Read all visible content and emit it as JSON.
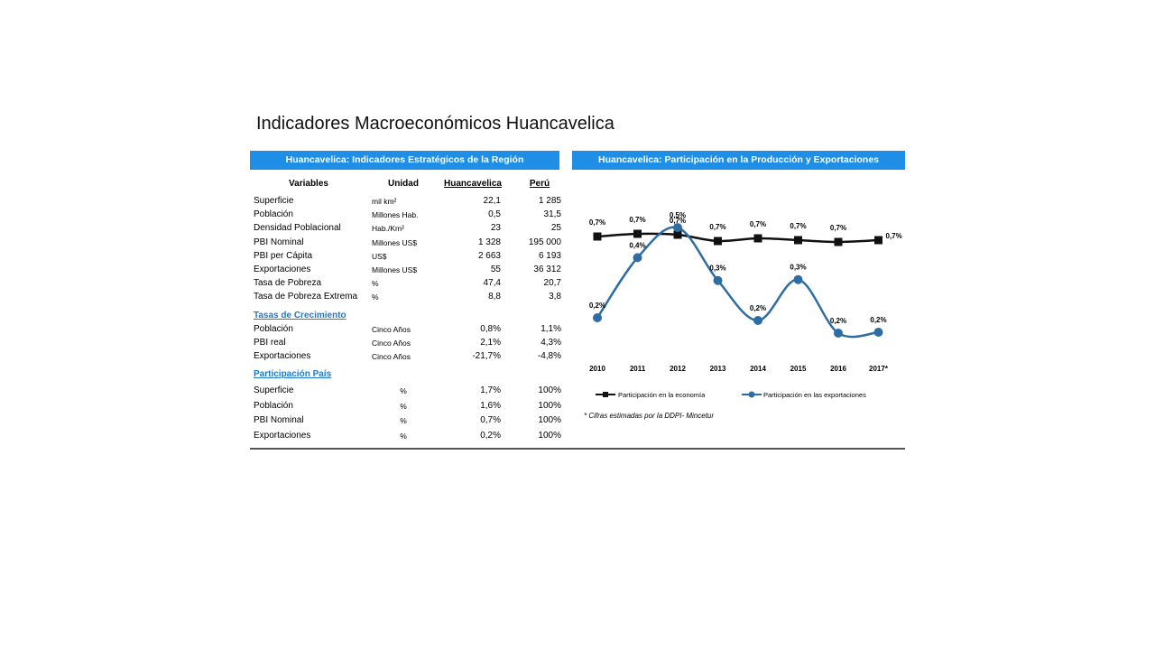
{
  "slide_title": "Indicadores Macroeconómicos Huancavelica",
  "left_panel": {
    "header": "Huancavelica: Indicadores Estratégicos de la Región",
    "columns": [
      "Variables",
      "Unidad",
      "Huancavelica",
      "Perú"
    ],
    "rows": [
      {
        "var": "Superficie",
        "unit": "mil km²",
        "reg": "22,1",
        "peru": "1 285"
      },
      {
        "var": "Población",
        "unit": "Millones Hab.",
        "reg": "0,5",
        "peru": "31,5"
      },
      {
        "var": "Densidad Poblacional",
        "unit": "Hab./Km²",
        "reg": "23",
        "peru": "25"
      },
      {
        "var": "PBI Nominal",
        "unit": "Millones US$",
        "reg": "1 328",
        "peru": "195 000"
      },
      {
        "var": "PBI per Cápita",
        "unit": "US$",
        "reg": "2 663",
        "peru": "6 193"
      },
      {
        "var": "Exportaciones",
        "unit": "Millones US$",
        "reg": "55",
        "peru": "36 312"
      },
      {
        "var": "Tasa de Pobreza",
        "unit": "%",
        "reg": "47,4",
        "peru": "20,7"
      },
      {
        "var": "Tasa de Pobreza Extrema",
        "unit": "%",
        "reg": "8,8",
        "peru": "3,8"
      }
    ],
    "growth": {
      "title": "Tasas de Crecimiento",
      "rows": [
        {
          "var": "Población",
          "unit": "Cinco Años",
          "reg": "0,8%",
          "peru": "1,1%"
        },
        {
          "var": "PBI real",
          "unit": "Cinco Años",
          "reg": "2,1%",
          "peru": "4,3%"
        },
        {
          "var": "Exportaciones",
          "unit": "Cinco Años",
          "reg": "-21,7%",
          "peru": "-4,8%"
        }
      ]
    },
    "share": {
      "title": "Participación País",
      "rows": [
        {
          "var": "Superficie",
          "unit": "%",
          "reg": "1,7%",
          "peru": "100%"
        },
        {
          "var": "Población",
          "unit": "%",
          "reg": "1,6%",
          "peru": "100%"
        },
        {
          "var": "PBI Nominal",
          "unit": "%",
          "reg": "0,7%",
          "peru": "100%"
        },
        {
          "var": "Exportaciones",
          "unit": "%",
          "reg": "0,2%",
          "peru": "100%"
        }
      ]
    }
  },
  "right_panel": {
    "header": "Huancavelica: Participación en la Producción y Exportaciones",
    "footnote": "* Cifras estimadas por la DDPI- Mincetur"
  },
  "chart_data": {
    "type": "line",
    "title": "Huancavelica: Participación en la Producción y Exportaciones",
    "categories": [
      "2010",
      "2011",
      "2012",
      "2013",
      "2014",
      "2015",
      "2016",
      "2017*"
    ],
    "series": [
      {
        "name": "Participación en la economía",
        "color": "#111111",
        "marker": "square",
        "values": [
          0.7,
          0.7,
          0.7,
          0.7,
          0.7,
          0.7,
          0.7,
          0.7
        ],
        "labels": [
          "0,7%",
          "0,7%",
          "0,7%",
          "0,7%",
          "0,7%",
          "0,7%",
          "0,7%",
          "0,7%"
        ]
      },
      {
        "name": "Participación en las exportaciones",
        "color": "#2e6da4",
        "marker": "circle",
        "values": [
          0.2,
          0.4,
          0.5,
          0.3,
          0.2,
          0.3,
          0.2,
          0.2
        ],
        "labels": [
          "0,2%",
          "0,4%",
          "0,5%",
          "0,3%",
          "0,2%",
          "0,3%",
          "0,2%",
          "0,2%"
        ]
      }
    ],
    "legend": "bottom",
    "grid": false
  }
}
